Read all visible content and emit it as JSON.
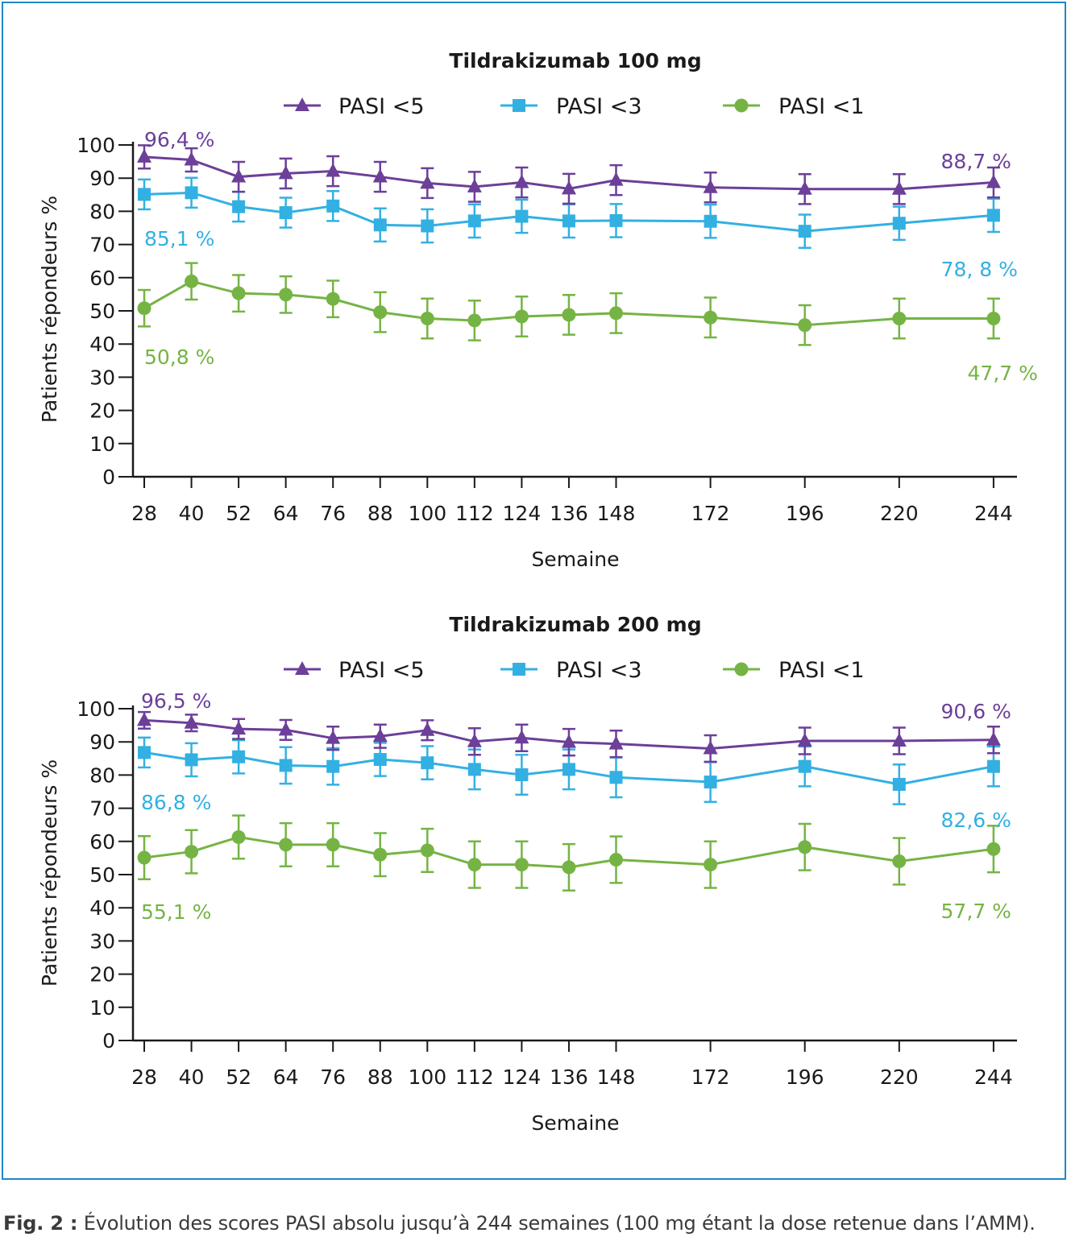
{
  "caption": {
    "prefix": "Fig. 2 :",
    "text": " Évolution des scores PASI absolu jusqu’à 244 semaines (100 mg étant la dose retenue dans l’AMM)."
  },
  "colors": {
    "frame": "#1f87c8",
    "pasi5": "#6c3f99",
    "pasi3": "#33b0e2",
    "pasi1": "#75b444"
  },
  "chart_data": [
    {
      "type": "line",
      "title": "Tildrakizumab 100 mg",
      "xlabel": "Semaine",
      "ylabel": "Patients répondeurs %",
      "ylim": [
        0,
        100
      ],
      "yticks": [
        0,
        10,
        20,
        30,
        40,
        50,
        60,
        70,
        80,
        90,
        100
      ],
      "x": [
        28,
        40,
        52,
        64,
        76,
        88,
        100,
        112,
        124,
        136,
        148,
        172,
        196,
        220,
        244
      ],
      "xtick_labels": [
        "28",
        "40",
        "52",
        "64",
        "76",
        "88",
        "100",
        "112",
        "124",
        "136",
        "148",
        "172",
        "196",
        "220",
        "244"
      ],
      "legend_position": "top",
      "error_bars": true,
      "series": [
        {
          "name": "PASI <5",
          "marker": "triangle",
          "color": "#6c3f99",
          "values": [
            96.4,
            95.5,
            90.4,
            91.4,
            92.1,
            90.4,
            88.5,
            87.4,
            88.7,
            86.8,
            89.4,
            87.2,
            86.7,
            86.7,
            88.7
          ],
          "err": [
            3.5,
            3.5,
            4.5,
            4.5,
            4.5,
            4.5,
            4.5,
            4.5,
            4.5,
            4.5,
            4.5,
            4.5,
            4.5,
            4.5,
            4.5
          ]
        },
        {
          "name": "PASI <3",
          "marker": "square",
          "color": "#33b0e2",
          "values": [
            85.1,
            85.6,
            81.4,
            79.6,
            81.6,
            75.9,
            75.6,
            77.1,
            78.5,
            77.1,
            77.2,
            77.0,
            74.0,
            76.4,
            78.8
          ],
          "err": [
            4.5,
            4.5,
            4.5,
            4.5,
            4.5,
            5,
            5,
            5,
            5,
            5,
            5,
            5,
            5,
            5,
            5
          ]
        },
        {
          "name": "PASI <1",
          "marker": "circle",
          "color": "#75b444",
          "values": [
            50.8,
            58.9,
            55.3,
            54.9,
            53.6,
            49.6,
            47.7,
            47.1,
            48.3,
            48.8,
            49.3,
            48.0,
            45.7,
            47.7,
            47.7
          ],
          "err": [
            5.5,
            5.5,
            5.5,
            5.5,
            5.5,
            6,
            6,
            6,
            6,
            6,
            6,
            6,
            6,
            6,
            6
          ]
        }
      ],
      "annotations": [
        {
          "text": "96,4 %",
          "series": 0,
          "at": "first"
        },
        {
          "text": "88,7 %",
          "series": 0,
          "at": "last"
        },
        {
          "text": "85,1 %",
          "series": 1,
          "at": "first"
        },
        {
          "text": "78, 8 %",
          "series": 1,
          "at": "last"
        },
        {
          "text": "50,8 %",
          "series": 2,
          "at": "first"
        },
        {
          "text": "47,7 %",
          "series": 2,
          "at": "last"
        }
      ]
    },
    {
      "type": "line",
      "title": "Tildrakizumab 200 mg",
      "xlabel": "Semaine",
      "ylabel": "Patients répondeurs %",
      "ylim": [
        0,
        100
      ],
      "yticks": [
        0,
        10,
        20,
        30,
        40,
        50,
        60,
        70,
        80,
        90,
        100
      ],
      "x": [
        28,
        40,
        52,
        64,
        76,
        88,
        100,
        112,
        124,
        136,
        148,
        172,
        196,
        220,
        244
      ],
      "xtick_labels": [
        "28",
        "40",
        "52",
        "64",
        "76",
        "88",
        "100",
        "112",
        "124",
        "136",
        "148",
        "172",
        "196",
        "220",
        "244"
      ],
      "legend_position": "top",
      "error_bars": true,
      "series": [
        {
          "name": "PASI <5",
          "marker": "triangle",
          "color": "#6c3f99",
          "values": [
            96.5,
            95.7,
            93.9,
            93.6,
            91.1,
            91.7,
            93.5,
            90.1,
            91.2,
            89.9,
            89.4,
            88.0,
            90.3,
            90.3,
            90.6
          ],
          "err": [
            2.5,
            2.5,
            3,
            3,
            3.5,
            3.5,
            3,
            4,
            4,
            4,
            4,
            4,
            4,
            4,
            4
          ]
        },
        {
          "name": "PASI <3",
          "marker": "square",
          "color": "#33b0e2",
          "values": [
            86.8,
            84.6,
            85.5,
            82.9,
            82.6,
            84.7,
            83.7,
            81.7,
            80.1,
            81.7,
            79.3,
            77.9,
            82.6,
            77.2,
            82.6
          ],
          "err": [
            4.5,
            5,
            5,
            5.5,
            5.5,
            5,
            5,
            6,
            6,
            6,
            6,
            6,
            6,
            6,
            6
          ]
        },
        {
          "name": "PASI <1",
          "marker": "circle",
          "color": "#75b444",
          "values": [
            55.1,
            56.9,
            61.3,
            59.0,
            59.0,
            56.0,
            57.3,
            53.0,
            53.0,
            52.2,
            54.5,
            53.0,
            58.3,
            54.0,
            57.7
          ],
          "err": [
            6.5,
            6.5,
            6.5,
            6.5,
            6.5,
            6.5,
            6.5,
            7,
            7,
            7,
            7,
            7,
            7,
            7,
            7
          ]
        }
      ],
      "annotations": [
        {
          "text": "96,5 %",
          "series": 0,
          "at": "first"
        },
        {
          "text": "90,6 %",
          "series": 0,
          "at": "last"
        },
        {
          "text": "86,8 %",
          "series": 1,
          "at": "first"
        },
        {
          "text": "82,6 %",
          "series": 1,
          "at": "last"
        },
        {
          "text": "55,1 %",
          "series": 2,
          "at": "first"
        },
        {
          "text": "57,7 %",
          "series": 2,
          "at": "last"
        }
      ]
    }
  ]
}
